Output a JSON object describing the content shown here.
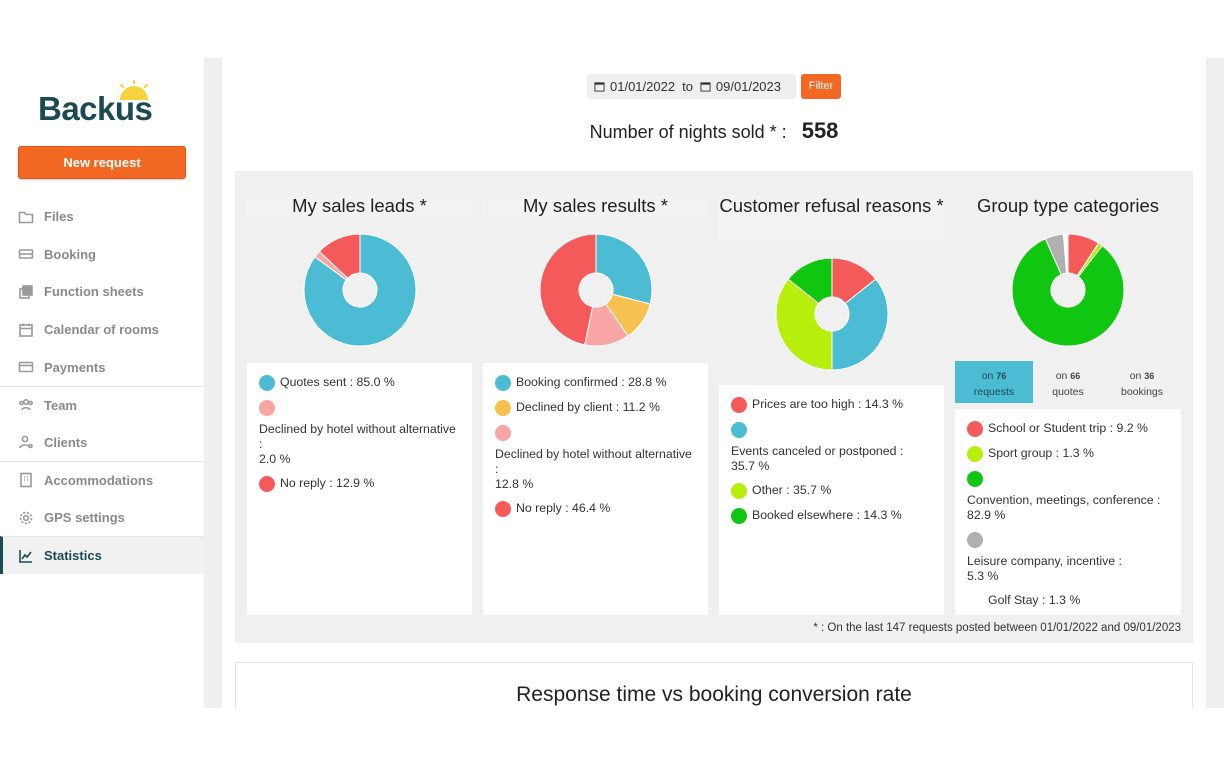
{
  "brand": {
    "name": "Backus",
    "accent": "#f26722",
    "dark": "#1b4a52"
  },
  "sidebar": {
    "new_request_label": "New request",
    "items": [
      {
        "label": "Files",
        "icon": "folder-icon"
      },
      {
        "label": "Booking",
        "icon": "ticket-icon"
      },
      {
        "label": "Function sheets",
        "icon": "copy-icon"
      },
      {
        "label": "Calendar of rooms",
        "icon": "calendar-icon"
      },
      {
        "label": "Payments",
        "icon": "credit-card-icon"
      },
      {
        "label": "Team",
        "icon": "team-icon"
      },
      {
        "label": "Clients",
        "icon": "clients-icon"
      },
      {
        "label": "Accommodations",
        "icon": "building-icon"
      },
      {
        "label": "GPS settings",
        "icon": "gear-icon"
      },
      {
        "label": "Statistics",
        "icon": "chart-line-icon",
        "active": true
      }
    ]
  },
  "filters": {
    "date_from": "01/01/2022",
    "to_label": "to",
    "date_to": "09/01/2023",
    "filter_label": "Filter"
  },
  "nights": {
    "label": "Number of nights sold * :",
    "value": "558"
  },
  "charts": {
    "sales_leads": {
      "title": "My sales leads *",
      "legend": [
        {
          "text": "Quotes sent : 85.0 %",
          "color": "#4bbcd3"
        },
        {
          "text": "Declined by hotel without alternative :\n2.0 %",
          "color": "#f9a5a5"
        },
        {
          "text": "No reply : 12.9 %",
          "color": "#f55a5a"
        }
      ]
    },
    "sales_results": {
      "title": "My sales results *",
      "legend": [
        {
          "text": "Booking confirmed : 28.8 %",
          "color": "#4bbcd3"
        },
        {
          "text": "Declined by client : 11.2 %",
          "color": "#f7c150"
        },
        {
          "text": "Declined by hotel without alternative :\n12.8 %",
          "color": "#f9a5a5"
        },
        {
          "text": "No reply : 46.4 %",
          "color": "#f55a5a"
        }
      ]
    },
    "refusal": {
      "title": "Customer refusal reasons *",
      "legend": [
        {
          "text": "Prices are too high : 14.3 %",
          "color": "#f55a5a"
        },
        {
          "text": "Events canceled or postponed :\n35.7 %",
          "color": "#4bbcd3"
        },
        {
          "text": "Other : 35.7 %",
          "color": "#b7ee0c"
        },
        {
          "text": "Booked elsewhere : 14.3 %",
          "color": "#10c610"
        }
      ]
    },
    "group_type": {
      "title": "Group type categories",
      "tabs": [
        {
          "prefix": "on",
          "count": "76",
          "unit": "requests"
        },
        {
          "prefix": "on",
          "count": "66",
          "unit": "quotes"
        },
        {
          "prefix": "on",
          "count": "36",
          "unit": "bookings"
        }
      ],
      "legend": [
        {
          "text": "School or Student trip : 9.2 %",
          "color": "#f55a5a"
        },
        {
          "text": "Sport group : 1.3 %",
          "color": "#b7ee0c"
        },
        {
          "text": "Convention, meetings, conference :\n82.9 %",
          "color": "#10c610"
        },
        {
          "text": "Leisure company, incentive :\n5.3 %",
          "color": "#b0b0b0"
        },
        {
          "text": "Golf Stay : 1.3 %",
          "color": "#ffffff"
        }
      ]
    }
  },
  "footnote": "* : On the last 147 requests posted between 01/01/2022 and 09/01/2023",
  "bottom": {
    "title": "Response time vs booking conversion rate"
  },
  "chart_data": [
    {
      "type": "pie",
      "title": "My sales leads *",
      "categories": [
        "Quotes sent",
        "Declined by hotel without alternative",
        "No reply"
      ],
      "values": [
        85.0,
        2.0,
        12.9
      ]
    },
    {
      "type": "pie",
      "title": "My sales results *",
      "categories": [
        "Booking confirmed",
        "Declined by client",
        "Declined by hotel without alternative",
        "No reply"
      ],
      "values": [
        28.8,
        11.2,
        12.8,
        46.4
      ]
    },
    {
      "type": "pie",
      "title": "Customer refusal reasons *",
      "categories": [
        "Prices are too high",
        "Events canceled or postponed",
        "Other",
        "Booked elsewhere"
      ],
      "values": [
        14.3,
        35.7,
        35.7,
        14.3
      ]
    },
    {
      "type": "pie",
      "title": "Group type categories",
      "categories": [
        "School or Student trip",
        "Sport group",
        "Convention, meetings, conference",
        "Leisure company, incentive",
        "Golf Stay"
      ],
      "values": [
        9.2,
        1.3,
        82.9,
        5.3,
        1.3
      ]
    }
  ]
}
